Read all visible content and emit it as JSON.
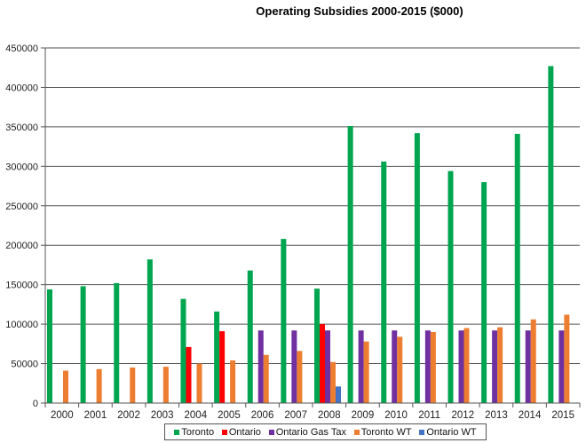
{
  "chart_data": {
    "type": "bar",
    "title": "Operating Subsidies 2000-2015 ($000)",
    "xlabel": "",
    "ylabel": "",
    "ylim": [
      0,
      450000
    ],
    "yticks": [
      0,
      50000,
      100000,
      150000,
      200000,
      250000,
      300000,
      350000,
      400000,
      450000
    ],
    "ytick_labels": [
      "0",
      "50000",
      "100000",
      "150000",
      "200000",
      "250000",
      "300000",
      "350000",
      "400000",
      "450000"
    ],
    "grid": true,
    "legend_position": "bottom",
    "categories": [
      "2000",
      "2001",
      "2002",
      "2003",
      "2004",
      "2005",
      "2006",
      "2007",
      "2008",
      "2009",
      "2010",
      "2011",
      "2012",
      "2013",
      "2014",
      "2015"
    ],
    "series": [
      {
        "name": "Toronto",
        "color": "#00a550",
        "values": [
          144000,
          148000,
          152000,
          182000,
          132000,
          116000,
          168000,
          208000,
          145000,
          351000,
          306000,
          342000,
          294000,
          280000,
          341000,
          427000
        ]
      },
      {
        "name": "Ontario",
        "color": "#ff0000",
        "values": [
          0,
          0,
          0,
          0,
          71000,
          91000,
          0,
          0,
          100000,
          0,
          0,
          0,
          0,
          0,
          0,
          0
        ]
      },
      {
        "name": "Ontario Gas Tax",
        "color": "#7030a0",
        "values": [
          0,
          0,
          0,
          0,
          0,
          0,
          92000,
          92000,
          92000,
          92000,
          92000,
          92000,
          92000,
          92000,
          92000,
          92000
        ]
      },
      {
        "name": "Toronto WT",
        "color": "#ed7d31",
        "values": [
          41000,
          43000,
          45000,
          46000,
          50000,
          54000,
          61000,
          66000,
          52000,
          78000,
          84000,
          90000,
          95000,
          96000,
          106000,
          112000
        ]
      },
      {
        "name": "Ontario WT",
        "color": "#4472c4",
        "values": [
          0,
          0,
          0,
          0,
          0,
          0,
          0,
          0,
          21000,
          0,
          0,
          0,
          0,
          0,
          0,
          0
        ]
      }
    ]
  }
}
